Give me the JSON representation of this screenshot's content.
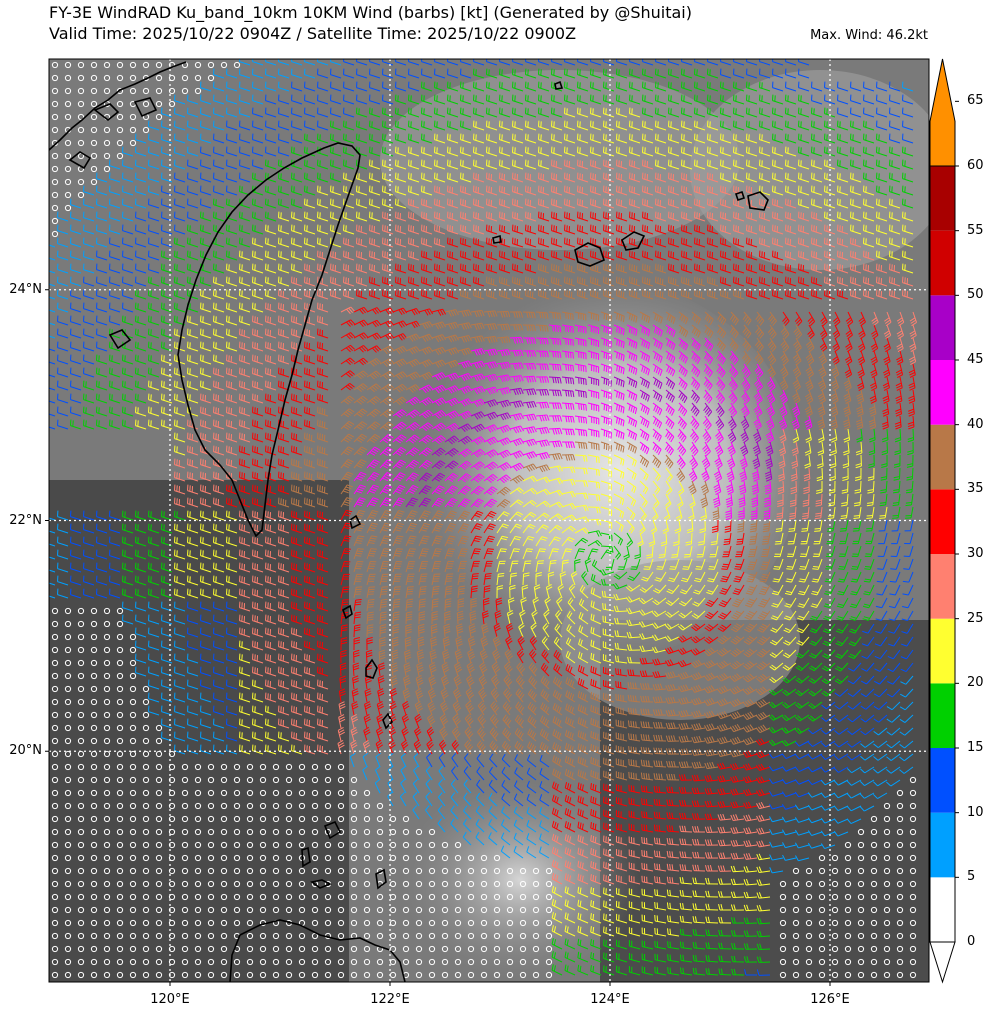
{
  "title": {
    "line1": "FY-3E WindRAD Ku_band_10km 10KM Wind (barbs) [kt] (Generated by @Shuitai)",
    "line2": "Valid Time: 2025/10/22 0904Z / Satellite Time: 2025/10/22 0900Z",
    "max_wind": "Max. Wind: 46.2kt"
  },
  "map": {
    "lon_range": [
      118.9,
      126.9
    ],
    "lat_range": [
      18.0,
      26.0
    ],
    "lon_ticks": [
      {
        "value": 120,
        "label": "120°E"
      },
      {
        "value": 122,
        "label": "122°E"
      },
      {
        "value": 124,
        "label": "124°E"
      },
      {
        "value": 126,
        "label": "126°E"
      }
    ],
    "lat_ticks": [
      {
        "value": 20,
        "label": "20°N"
      },
      {
        "value": 22,
        "label": "22°N"
      },
      {
        "value": 24,
        "label": "24°N"
      }
    ],
    "grid": "dotted white"
  },
  "colorbar": {
    "unit": "kt",
    "ticks": [
      "0",
      "5",
      "10",
      "15",
      "20",
      "25",
      "30",
      "35",
      "40",
      "45",
      "50",
      "55",
      "60",
      "65"
    ],
    "colors": [
      "#ffffff",
      "#00a0ff",
      "#0050ff",
      "#00d000",
      "#ffff30",
      "#ff8070",
      "#ff0000",
      "#b87848",
      "#ff00ff",
      "#a800c8",
      "#d00000",
      "#a80000",
      "#ff9000"
    ]
  }
}
